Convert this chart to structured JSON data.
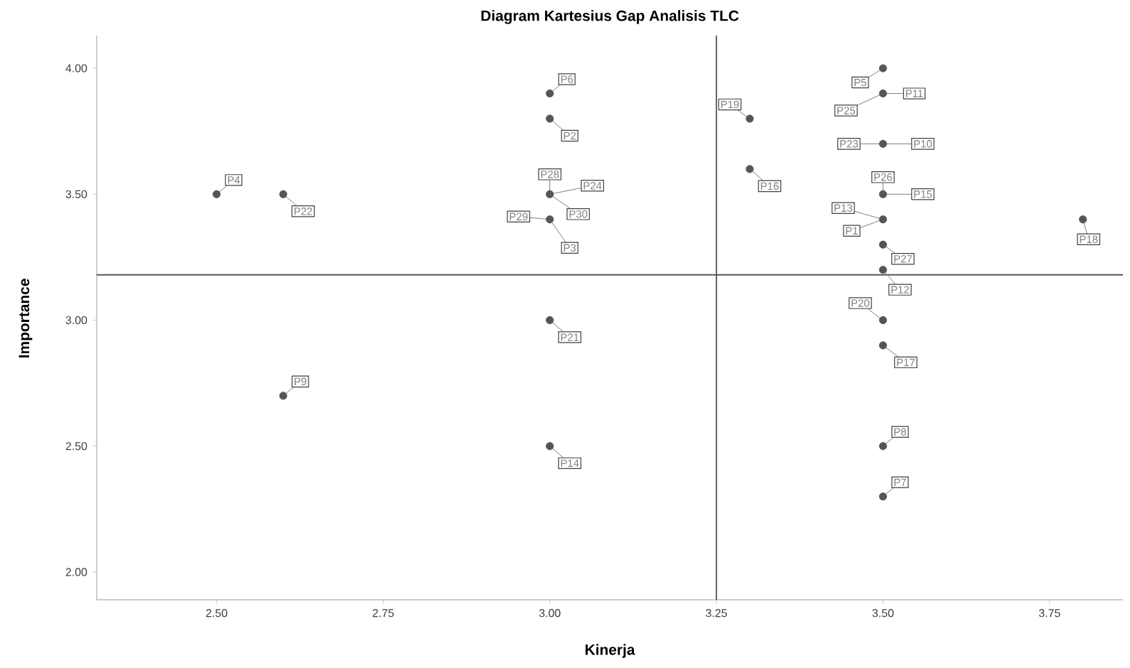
{
  "chart_data": {
    "type": "scatter",
    "title": "Diagram Kartesius Gap Analisis TLC",
    "xlabel": "Kinerja",
    "ylabel": "Importance",
    "xlim": [
      2.32,
      3.86
    ],
    "ylim": [
      1.89,
      4.13
    ],
    "xticks": [
      {
        "value": 2.5,
        "label": "2.50"
      },
      {
        "value": 2.75,
        "label": "2.75"
      },
      {
        "value": 3.0,
        "label": "3.00"
      },
      {
        "value": 3.25,
        "label": "3.25"
      },
      {
        "value": 3.5,
        "label": "3.50"
      },
      {
        "value": 3.75,
        "label": "3.75"
      }
    ],
    "yticks": [
      {
        "value": 2.0,
        "label": "2.00"
      },
      {
        "value": 2.5,
        "label": "2.50"
      },
      {
        "value": 3.0,
        "label": "3.00"
      },
      {
        "value": 3.5,
        "label": "3.50"
      },
      {
        "value": 4.0,
        "label": "4.00"
      }
    ],
    "marker": "circle",
    "series": [
      {
        "color": "#555555",
        "x": [
          2.5,
          2.6,
          2.6,
          3.0,
          3.0,
          3.0,
          3.0,
          3.0,
          3.0,
          3.3,
          3.3,
          3.5,
          3.5,
          3.5,
          3.5,
          3.5,
          3.5,
          3.5,
          3.5,
          3.5,
          3.5,
          3.5,
          3.8
        ],
        "values": [
          3.5,
          3.5,
          2.7,
          3.9,
          3.8,
          3.5,
          3.4,
          3.0,
          2.5,
          3.8,
          3.6,
          4.0,
          3.9,
          3.7,
          3.5,
          3.4,
          3.3,
          3.2,
          3.0,
          2.9,
          2.5,
          2.3,
          3.4
        ]
      }
    ],
    "ref_lines": [
      {
        "axis": "x",
        "value": 3.25,
        "color": "#555555"
      },
      {
        "axis": "y",
        "value": 3.18,
        "color": "#555555"
      }
    ],
    "annotations": [
      {
        "text": "P1",
        "x": 3.5,
        "y": 3.4
      },
      {
        "text": "P2",
        "x": 3.0,
        "y": 3.8
      },
      {
        "text": "P3",
        "x": 3.0,
        "y": 3.4
      },
      {
        "text": "P4",
        "x": 2.5,
        "y": 3.5
      },
      {
        "text": "P5",
        "x": 3.5,
        "y": 4.0
      },
      {
        "text": "P6",
        "x": 3.0,
        "y": 3.9
      },
      {
        "text": "P7",
        "x": 3.5,
        "y": 2.3
      },
      {
        "text": "P8",
        "x": 3.5,
        "y": 2.5
      },
      {
        "text": "P9",
        "x": 2.6,
        "y": 2.7
      },
      {
        "text": "P10",
        "x": 3.5,
        "y": 3.7
      },
      {
        "text": "P11",
        "x": 3.5,
        "y": 3.9
      },
      {
        "text": "P12",
        "x": 3.5,
        "y": 3.2
      },
      {
        "text": "P13",
        "x": 3.5,
        "y": 3.4
      },
      {
        "text": "P14",
        "x": 3.0,
        "y": 2.5
      },
      {
        "text": "P15",
        "x": 3.5,
        "y": 3.5
      },
      {
        "text": "P16",
        "x": 3.3,
        "y": 3.6
      },
      {
        "text": "P17",
        "x": 3.5,
        "y": 2.9
      },
      {
        "text": "P18",
        "x": 3.8,
        "y": 3.4
      },
      {
        "text": "P19",
        "x": 3.3,
        "y": 3.8
      },
      {
        "text": "P20",
        "x": 3.5,
        "y": 3.0
      },
      {
        "text": "P21",
        "x": 3.0,
        "y": 3.0
      },
      {
        "text": "P22",
        "x": 2.6,
        "y": 3.5
      },
      {
        "text": "P23",
        "x": 3.5,
        "y": 3.7
      },
      {
        "text": "P24",
        "x": 3.0,
        "y": 3.5
      },
      {
        "text": "P25",
        "x": 3.5,
        "y": 3.9
      },
      {
        "text": "P26",
        "x": 3.5,
        "y": 3.5
      },
      {
        "text": "P27",
        "x": 3.5,
        "y": 3.3
      },
      {
        "text": "P28",
        "x": 3.0,
        "y": 3.5
      },
      {
        "text": "P29",
        "x": 3.0,
        "y": 3.4
      },
      {
        "text": "P30",
        "x": 3.0,
        "y": 3.5
      }
    ]
  }
}
